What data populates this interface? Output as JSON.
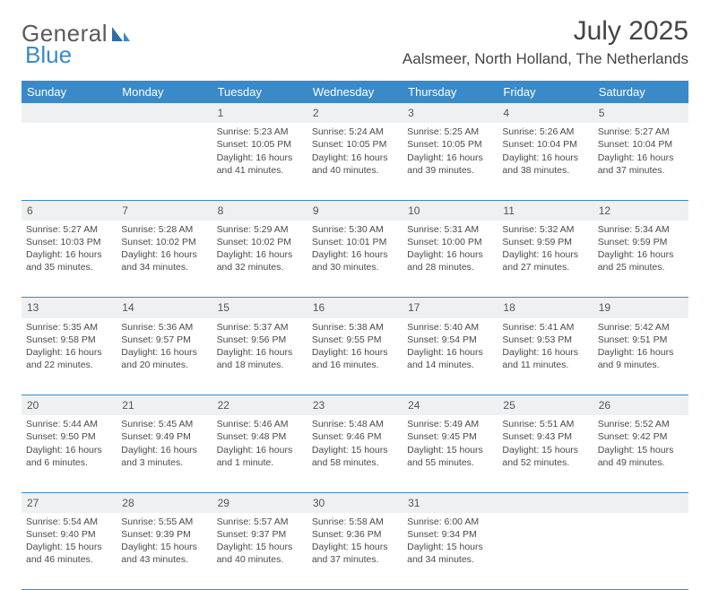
{
  "brand": {
    "word1": "General",
    "word2": "Blue"
  },
  "title": "July 2025",
  "location": "Aalsmeer, North Holland, The Netherlands",
  "colors": {
    "header_bg": "#3a8ac9",
    "header_text": "#ffffff",
    "daynum_bg": "#eef0f2",
    "text": "#4a4a4a",
    "rule": "#3a8ac9",
    "page_bg": "#ffffff",
    "logo_gray": "#5a5a5a",
    "logo_blue": "#3a8ac9"
  },
  "typography": {
    "title_fontsize": 30,
    "location_fontsize": 17,
    "dayheader_fontsize": 13,
    "daynum_fontsize": 12,
    "body_fontsize": 10.5,
    "font_family": "Arial"
  },
  "dayHeaders": [
    "Sunday",
    "Monday",
    "Tuesday",
    "Wednesday",
    "Thursday",
    "Friday",
    "Saturday"
  ],
  "weeks": [
    [
      null,
      null,
      {
        "n": "1",
        "sunrise": "5:23 AM",
        "sunset": "10:05 PM",
        "daylight": "16 hours and 41 minutes."
      },
      {
        "n": "2",
        "sunrise": "5:24 AM",
        "sunset": "10:05 PM",
        "daylight": "16 hours and 40 minutes."
      },
      {
        "n": "3",
        "sunrise": "5:25 AM",
        "sunset": "10:05 PM",
        "daylight": "16 hours and 39 minutes."
      },
      {
        "n": "4",
        "sunrise": "5:26 AM",
        "sunset": "10:04 PM",
        "daylight": "16 hours and 38 minutes."
      },
      {
        "n": "5",
        "sunrise": "5:27 AM",
        "sunset": "10:04 PM",
        "daylight": "16 hours and 37 minutes."
      }
    ],
    [
      {
        "n": "6",
        "sunrise": "5:27 AM",
        "sunset": "10:03 PM",
        "daylight": "16 hours and 35 minutes."
      },
      {
        "n": "7",
        "sunrise": "5:28 AM",
        "sunset": "10:02 PM",
        "daylight": "16 hours and 34 minutes."
      },
      {
        "n": "8",
        "sunrise": "5:29 AM",
        "sunset": "10:02 PM",
        "daylight": "16 hours and 32 minutes."
      },
      {
        "n": "9",
        "sunrise": "5:30 AM",
        "sunset": "10:01 PM",
        "daylight": "16 hours and 30 minutes."
      },
      {
        "n": "10",
        "sunrise": "5:31 AM",
        "sunset": "10:00 PM",
        "daylight": "16 hours and 28 minutes."
      },
      {
        "n": "11",
        "sunrise": "5:32 AM",
        "sunset": "9:59 PM",
        "daylight": "16 hours and 27 minutes."
      },
      {
        "n": "12",
        "sunrise": "5:34 AM",
        "sunset": "9:59 PM",
        "daylight": "16 hours and 25 minutes."
      }
    ],
    [
      {
        "n": "13",
        "sunrise": "5:35 AM",
        "sunset": "9:58 PM",
        "daylight": "16 hours and 22 minutes."
      },
      {
        "n": "14",
        "sunrise": "5:36 AM",
        "sunset": "9:57 PM",
        "daylight": "16 hours and 20 minutes."
      },
      {
        "n": "15",
        "sunrise": "5:37 AM",
        "sunset": "9:56 PM",
        "daylight": "16 hours and 18 minutes."
      },
      {
        "n": "16",
        "sunrise": "5:38 AM",
        "sunset": "9:55 PM",
        "daylight": "16 hours and 16 minutes."
      },
      {
        "n": "17",
        "sunrise": "5:40 AM",
        "sunset": "9:54 PM",
        "daylight": "16 hours and 14 minutes."
      },
      {
        "n": "18",
        "sunrise": "5:41 AM",
        "sunset": "9:53 PM",
        "daylight": "16 hours and 11 minutes."
      },
      {
        "n": "19",
        "sunrise": "5:42 AM",
        "sunset": "9:51 PM",
        "daylight": "16 hours and 9 minutes."
      }
    ],
    [
      {
        "n": "20",
        "sunrise": "5:44 AM",
        "sunset": "9:50 PM",
        "daylight": "16 hours and 6 minutes."
      },
      {
        "n": "21",
        "sunrise": "5:45 AM",
        "sunset": "9:49 PM",
        "daylight": "16 hours and 3 minutes."
      },
      {
        "n": "22",
        "sunrise": "5:46 AM",
        "sunset": "9:48 PM",
        "daylight": "16 hours and 1 minute."
      },
      {
        "n": "23",
        "sunrise": "5:48 AM",
        "sunset": "9:46 PM",
        "daylight": "15 hours and 58 minutes."
      },
      {
        "n": "24",
        "sunrise": "5:49 AM",
        "sunset": "9:45 PM",
        "daylight": "15 hours and 55 minutes."
      },
      {
        "n": "25",
        "sunrise": "5:51 AM",
        "sunset": "9:43 PM",
        "daylight": "15 hours and 52 minutes."
      },
      {
        "n": "26",
        "sunrise": "5:52 AM",
        "sunset": "9:42 PM",
        "daylight": "15 hours and 49 minutes."
      }
    ],
    [
      {
        "n": "27",
        "sunrise": "5:54 AM",
        "sunset": "9:40 PM",
        "daylight": "15 hours and 46 minutes."
      },
      {
        "n": "28",
        "sunrise": "5:55 AM",
        "sunset": "9:39 PM",
        "daylight": "15 hours and 43 minutes."
      },
      {
        "n": "29",
        "sunrise": "5:57 AM",
        "sunset": "9:37 PM",
        "daylight": "15 hours and 40 minutes."
      },
      {
        "n": "30",
        "sunrise": "5:58 AM",
        "sunset": "9:36 PM",
        "daylight": "15 hours and 37 minutes."
      },
      {
        "n": "31",
        "sunrise": "6:00 AM",
        "sunset": "9:34 PM",
        "daylight": "15 hours and 34 minutes."
      },
      null,
      null
    ]
  ],
  "labels": {
    "sunrise": "Sunrise:",
    "sunset": "Sunset:",
    "daylight": "Daylight:"
  }
}
